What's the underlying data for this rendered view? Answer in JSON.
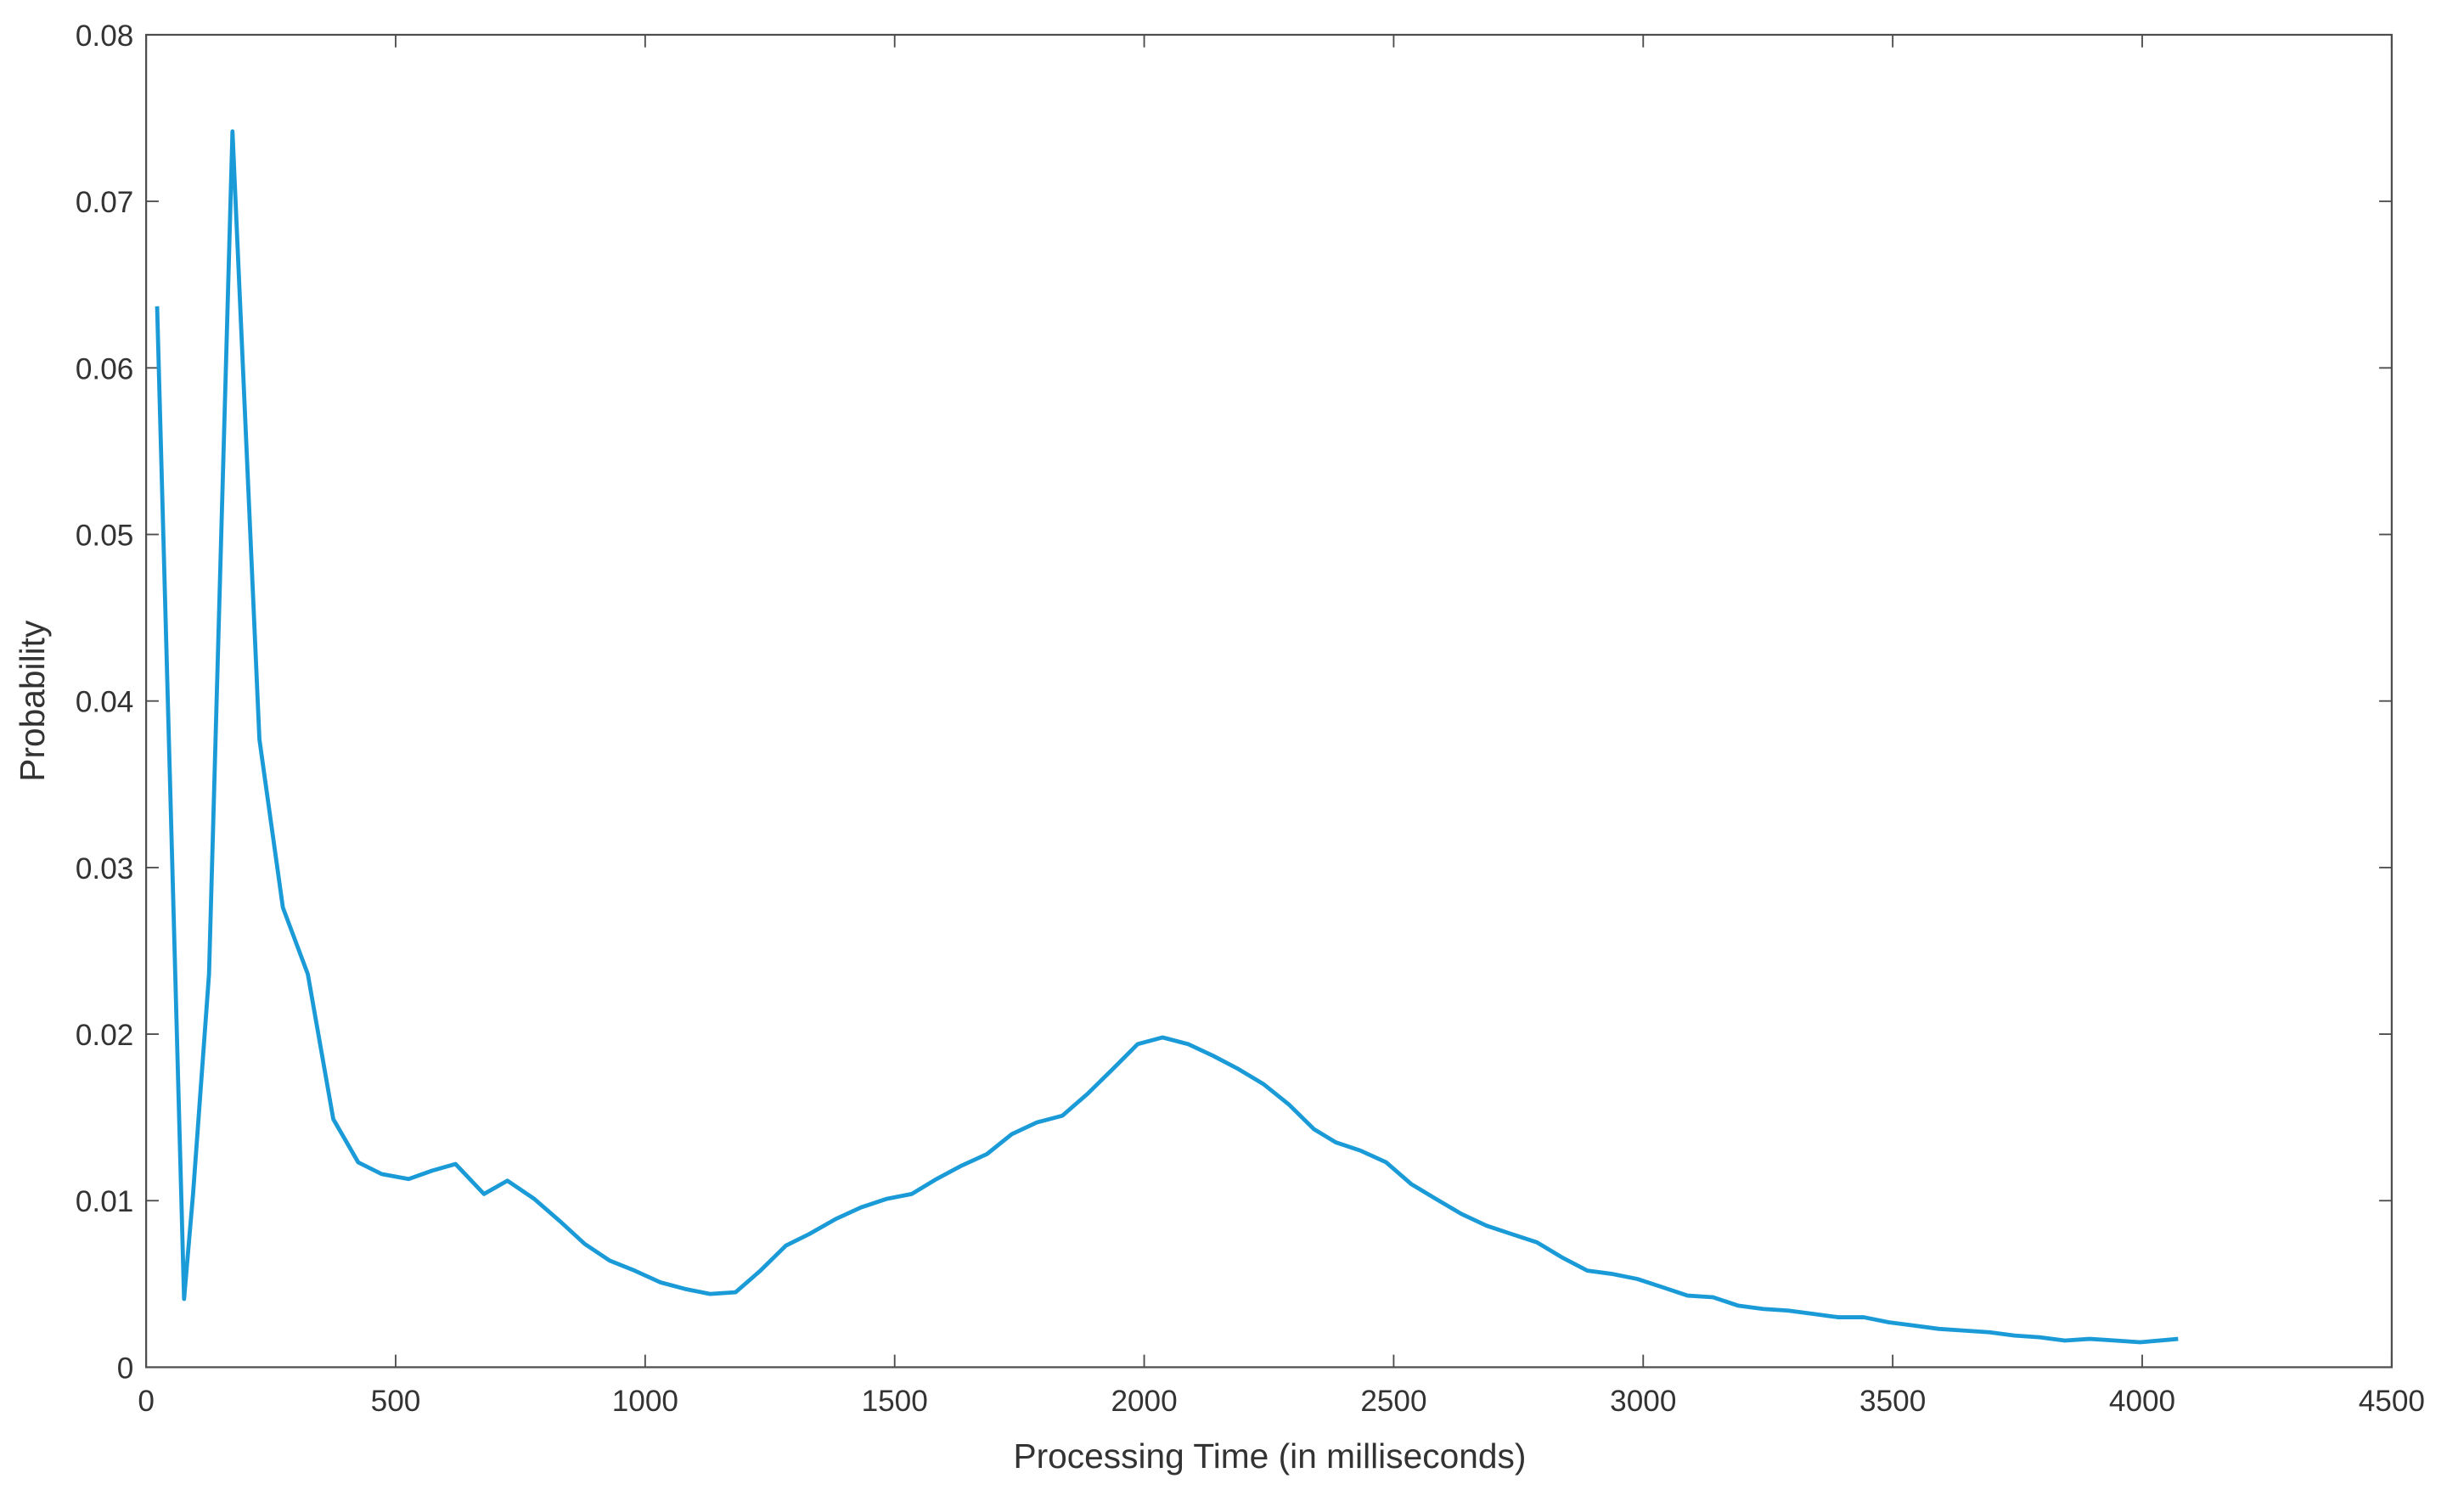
{
  "chart_data": {
    "type": "line",
    "xlabel": "Processing Time (in milliseconds)",
    "ylabel": "Probability",
    "color": "#1a9bd7",
    "x": [
      22,
      76,
      94,
      126,
      173,
      227,
      274,
      324,
      375,
      425,
      472,
      526,
      573,
      620,
      677,
      724,
      778,
      828,
      879,
      929,
      979,
      1030,
      1080,
      1130,
      1181,
      1231,
      1282,
      1329,
      1382,
      1433,
      1483,
      1534,
      1584,
      1634,
      1685,
      1735,
      1785,
      1836,
      1886,
      1937,
      1987,
      2037,
      2088,
      2138,
      2189,
      2239,
      2289,
      2340,
      2384,
      2434,
      2485,
      2535,
      2585,
      2636,
      2686,
      2736,
      2787,
      2837,
      2888,
      2938,
      2988,
      3039,
      3089,
      3140,
      3190,
      3240,
      3291,
      3341,
      3391,
      3442,
      3492,
      3543,
      3593,
      3643,
      3694,
      3744,
      3794,
      3845,
      3895,
      3946,
      3996,
      4072
    ],
    "values": [
      0.0637,
      0.0041,
      0.0104,
      0.0236,
      0.0742,
      0.0377,
      0.0276,
      0.0236,
      0.0149,
      0.0123,
      0.0116,
      0.0113,
      0.0118,
      0.0122,
      0.0104,
      0.0112,
      0.0101,
      0.0088,
      0.0074,
      0.0064,
      0.0058,
      0.0051,
      0.0047,
      0.0044,
      0.0045,
      0.0058,
      0.0073,
      0.008,
      0.0089,
      0.0096,
      0.0101,
      0.0104,
      0.0113,
      0.0121,
      0.0128,
      0.014,
      0.0147,
      0.0151,
      0.0164,
      0.0179,
      0.0194,
      0.0198,
      0.0194,
      0.0187,
      0.0179,
      0.017,
      0.0158,
      0.0143,
      0.0135,
      0.013,
      0.0123,
      0.011,
      0.0101,
      0.0092,
      0.0085,
      0.008,
      0.0075,
      0.0066,
      0.0058,
      0.0056,
      0.0053,
      0.0048,
      0.0043,
      0.0042,
      0.0037,
      0.0035,
      0.0034,
      0.0032,
      0.003,
      0.003,
      0.0027,
      0.0025,
      0.0023,
      0.0022,
      0.0021,
      0.0019,
      0.0018,
      0.0016,
      0.0017,
      0.0016,
      0.0015,
      0.0017
    ],
    "xlim": [
      0,
      4500
    ],
    "xticks": [
      0,
      500,
      1000,
      1500,
      2000,
      2500,
      3000,
      3500,
      4000,
      4500
    ],
    "ylim": [
      0,
      0.08
    ],
    "yticks": [
      0,
      0.01,
      0.02,
      0.03,
      0.04,
      0.05,
      0.06,
      0.07,
      0.08
    ]
  }
}
